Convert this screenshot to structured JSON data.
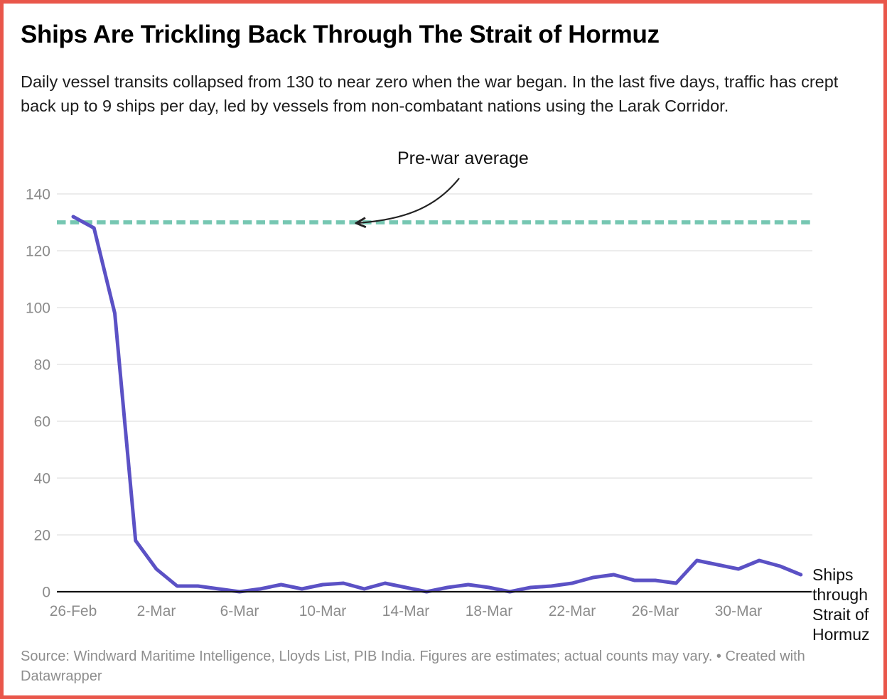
{
  "card": {
    "title": "Ships Are Trickling Back Through The Strait of Hormuz",
    "description": "Daily vessel transits collapsed from 130 to near zero when the war began. In the last five days, traffic has crept back up to 9 ships per day, led by vessels from non-combatant nations using the Larak Corridor.",
    "source_note": "Source: Windward Maritime Intelligence, Lloyds List, PIB India. Figures are estimates; actual counts may vary. • Created with Datawrapper",
    "accent_border_color": "#e9564a"
  },
  "chart_data": {
    "type": "line",
    "title": "Ships Are Trickling Back Through The Strait of Hormuz",
    "x": [
      "26-Feb",
      "27-Feb",
      "28-Feb",
      "1-Mar",
      "2-Mar",
      "3-Mar",
      "4-Mar",
      "5-Mar",
      "6-Mar",
      "7-Mar",
      "8-Mar",
      "9-Mar",
      "10-Mar",
      "11-Mar",
      "12-Mar",
      "13-Mar",
      "14-Mar",
      "15-Mar",
      "16-Mar",
      "17-Mar",
      "18-Mar",
      "19-Mar",
      "20-Mar",
      "21-Mar",
      "22-Mar",
      "23-Mar",
      "24-Mar",
      "25-Mar",
      "26-Mar",
      "27-Mar",
      "28-Mar",
      "29-Mar",
      "30-Mar",
      "31-Mar",
      "1-Apr",
      "2-Apr"
    ],
    "series": [
      {
        "name": "Ships through Strait of Hormuz",
        "color": "#5b51c5",
        "values": [
          132,
          128,
          98,
          18,
          8,
          2,
          2,
          1,
          0,
          1,
          2.5,
          1,
          2.5,
          3,
          1,
          3,
          1.5,
          0,
          1.5,
          2.5,
          1.5,
          0,
          1.5,
          2,
          3,
          5,
          6,
          4,
          4,
          3,
          11,
          9.5,
          8,
          11,
          9,
          6
        ],
        "last_five_day_avg_note": "9"
      }
    ],
    "x_tick_labels": [
      "26-Feb",
      "2-Mar",
      "6-Mar",
      "10-Mar",
      "14-Mar",
      "18-Mar",
      "22-Mar",
      "26-Mar",
      "30-Mar"
    ],
    "x_tick_indices": [
      0,
      4,
      8,
      12,
      16,
      20,
      24,
      28,
      32
    ],
    "y_ticks": [
      0,
      20,
      40,
      60,
      80,
      100,
      120,
      140
    ],
    "ylim": [
      0,
      145
    ],
    "grid": "horizontal",
    "legend_position": "end-of-line-label",
    "annotation": {
      "label": "Pre-war average",
      "value": 130,
      "style": "dashed",
      "color": "#76c7b2"
    },
    "axis_text_color": "#8b8b8b",
    "gridline_color": "#e6e6e6",
    "baseline_color": "#111111"
  }
}
